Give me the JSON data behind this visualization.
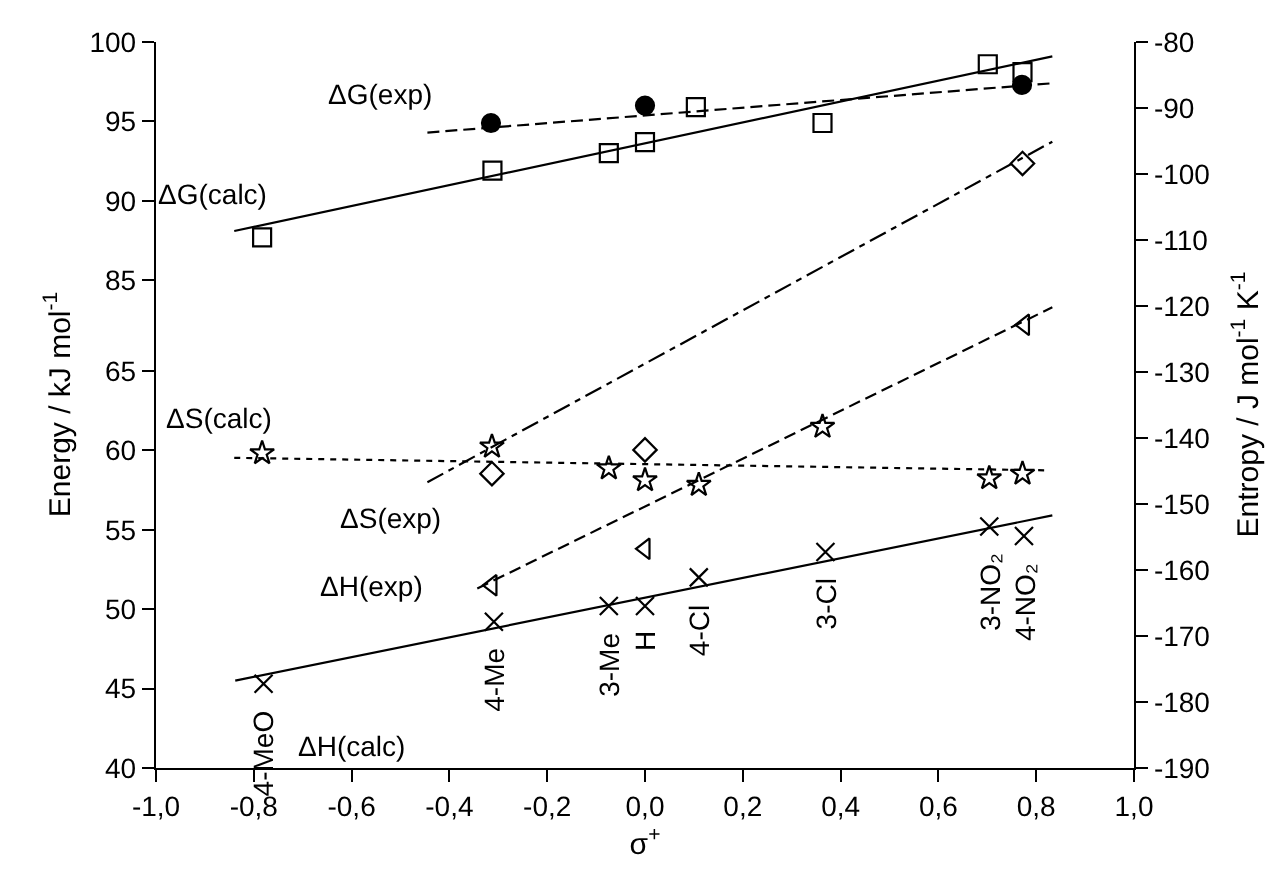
{
  "chart_data": {
    "type": "scatter",
    "xlabel": "σ$^{+}$",
    "ylabel": "Energy / kJ mol$^{-1}$",
    "y2label": "Entropy / J mol$^{-1}$ K$^{-1}$",
    "xlim": [
      -1.0,
      1.0
    ],
    "xticks": [
      {
        "value": -1.0,
        "label": "-1,0"
      },
      {
        "value": -0.8,
        "label": "-0,8"
      },
      {
        "value": -0.6,
        "label": "-0,6"
      },
      {
        "value": -0.4,
        "label": "-0,4"
      },
      {
        "value": -0.2,
        "label": "-0,2"
      },
      {
        "value": 0.0,
        "label": "0,0"
      },
      {
        "value": 0.2,
        "label": "0,2"
      },
      {
        "value": 0.4,
        "label": "0,4"
      },
      {
        "value": 0.6,
        "label": "0,6"
      },
      {
        "value": 0.8,
        "label": "0,8"
      },
      {
        "value": 1.0,
        "label": "1,0"
      }
    ],
    "ylim": [
      40,
      85.7
    ],
    "yticks": [
      40,
      45,
      50,
      55,
      60,
      65
    ],
    "y3lim": [
      54.3,
      100
    ],
    "y3ticks": [
      85,
      90,
      95,
      100
    ],
    "y2lim": [
      -190,
      -80
    ],
    "y2ticks": [
      -190,
      -180,
      -170,
      -160,
      -150,
      -140,
      -130,
      -120,
      -110,
      -100,
      -90,
      -80
    ],
    "grid": false,
    "legend": false,
    "series": [
      {
        "name": "ΔS(calc)",
        "type": "scatter",
        "axis": "y2",
        "marker": "star",
        "color": "#000000",
        "x": [
          -0.783,
          -0.313,
          -0.074,
          0.0,
          0.11,
          0.363,
          0.704,
          0.772
        ],
        "values": [
          -142.3,
          -141.3,
          -144.6,
          -146.4,
          -147.1,
          -138.3,
          -146.1,
          -145.4
        ]
      },
      {
        "type": "line",
        "axis": "y2",
        "line_style": "dotted",
        "color": "#000000",
        "x": [
          -0.84,
          0.823
        ],
        "values": [
          -143.0,
          -144.9
        ]
      },
      {
        "name": "ΔS(exp)",
        "type": "scatter",
        "axis": "y2",
        "marker": "diamond",
        "color": "#000000",
        "x": [
          -0.313,
          0.0,
          0.772
        ],
        "values": [
          -145.4,
          -141.8,
          -98.4
        ]
      },
      {
        "type": "line",
        "axis": "y2",
        "line_style": "dashdot",
        "color": "#000000",
        "x": [
          -0.445,
          0.833
        ],
        "values": [
          -146.7,
          -95.1
        ]
      },
      {
        "name": "ΔH(exp)",
        "type": "scatter",
        "axis": "y",
        "marker": "triangle",
        "color": "#000000",
        "x": [
          -0.313,
          0.0,
          0.776
        ],
        "values": [
          51.5,
          53.8,
          67.9
        ]
      },
      {
        "type": "line",
        "axis": "y",
        "line_style": "dashed",
        "color": "#000000",
        "x": [
          -0.343,
          0.833
        ],
        "values": [
          51.3,
          69.0
        ]
      },
      {
        "name": "ΔH(calc)",
        "type": "scatter",
        "axis": "y",
        "marker": "cross",
        "color": "#000000",
        "x": [
          -0.78,
          -0.309,
          -0.074,
          0.0,
          0.11,
          0.369,
          0.704,
          0.775
        ],
        "values": [
          45.3,
          49.2,
          50.2,
          50.2,
          52.0,
          53.6,
          55.2,
          54.6
        ]
      },
      {
        "type": "line",
        "axis": "y",
        "line_style": "solid",
        "color": "#000000",
        "x": [
          -0.838,
          0.833
        ],
        "values": [
          45.5,
          55.9
        ]
      },
      {
        "name": "ΔG(exp)",
        "type": "scatter",
        "axis": "y3",
        "marker": "circle",
        "color": "#000000",
        "x": [
          -0.315,
          0.0,
          0.771
        ],
        "values": [
          94.9,
          96.0,
          97.3
        ]
      },
      {
        "type": "line",
        "axis": "y3",
        "line_style": "dashed",
        "color": "#000000",
        "x": [
          -0.445,
          0.833
        ],
        "values": [
          94.3,
          97.4
        ]
      },
      {
        "name": "ΔG(calc)",
        "type": "scatter",
        "axis": "y3",
        "marker": "square",
        "color": "#000000",
        "x": [
          -0.783,
          -0.312,
          -0.074,
          0.0,
          0.104,
          0.363,
          0.701,
          0.772
        ],
        "values": [
          87.7,
          91.9,
          93.0,
          93.7,
          95.9,
          94.9,
          98.6,
          98.1
        ]
      },
      {
        "type": "line",
        "axis": "y3",
        "line_style": "solid",
        "color": "#000000",
        "x": [
          -0.84,
          0.833
        ],
        "values": [
          88.1,
          99.1
        ]
      }
    ],
    "annotations": [
      {
        "text": "4-MeO",
        "x": -0.78,
        "y": 45.3
      },
      {
        "text": "4-Me",
        "x": -0.309,
        "y": 49.2
      },
      {
        "text": "3-Me",
        "x": -0.074,
        "y": 50.2
      },
      {
        "text": "H",
        "x": 0.0,
        "y": 50.2
      },
      {
        "text": "4-Cl",
        "x": 0.11,
        "y": 52.0
      },
      {
        "text": "3-Cl",
        "x": 0.369,
        "y": 53.6
      },
      {
        "text": "3-NO₂",
        "x": 0.704,
        "y": 55.2
      },
      {
        "text": "4-NO₂",
        "x": 0.775,
        "y": 54.6
      }
    ]
  }
}
